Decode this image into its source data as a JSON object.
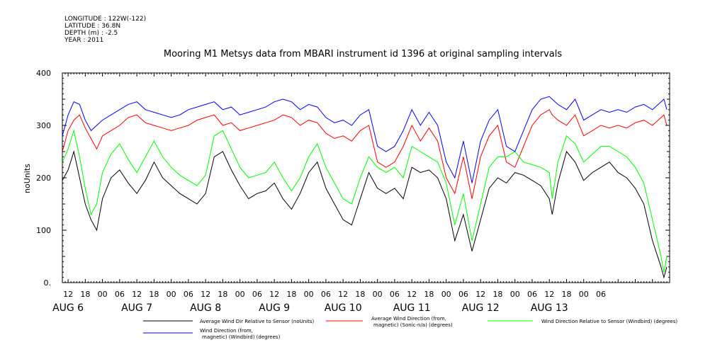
{
  "meta": {
    "longitude": "LONGITUDE : 122W(-122)",
    "latitude": "LATITUDE : 36.8N",
    "depth": "DEPTH (m) : -2.5",
    "year": "YEAR : 2011"
  },
  "chart_data": {
    "type": "line",
    "title": "Mooring M1 Metsys data from MBARI instrument id 1396 at original sampling intervals",
    "ylabel": "noUnits",
    "ylim": [
      0,
      400
    ],
    "yticks": [
      "0.",
      "100",
      "200",
      "300",
      "400"
    ],
    "xlim": [
      10,
      222
    ],
    "x_unit": "hours since Aug 6 00:00 (2011)",
    "hour_ticks": [
      "12",
      "18",
      "00",
      "06",
      "12",
      "18",
      "00",
      "06",
      "12",
      "18",
      "00",
      "06",
      "12",
      "18",
      "00",
      "06",
      "12",
      "18",
      "00",
      "06",
      "12",
      "18",
      "00",
      "06",
      "12",
      "18",
      "00",
      "06",
      "12",
      "18",
      "00",
      "06"
    ],
    "day_labels": [
      "AUG  6",
      "AUG  7",
      "AUG  8",
      "AUG  9",
      "AUG 10",
      "AUG 11",
      "AUG 12",
      "AUG 13"
    ],
    "series": [
      {
        "name": "Average Wind Dir Relative to Sensor (noUnits)",
        "color": "#000000",
        "x": [
          10,
          12,
          14,
          16,
          18,
          20,
          22,
          24,
          27,
          30,
          33,
          36,
          39,
          42,
          45,
          48,
          51,
          54,
          57,
          60,
          63,
          66,
          69,
          72,
          75,
          78,
          81,
          84,
          87,
          90,
          93,
          96,
          99,
          102,
          105,
          108,
          111,
          114,
          117,
          120,
          123,
          126,
          129,
          132,
          135,
          138,
          141,
          144,
          147,
          150,
          153,
          156,
          159,
          162,
          165,
          168,
          171,
          174,
          177,
          180,
          181,
          183,
          186,
          189,
          192,
          195,
          198,
          201,
          204,
          207,
          210,
          213,
          216,
          219,
          220,
          221
        ],
        "values": [
          195,
          215,
          250,
          200,
          150,
          120,
          100,
          160,
          200,
          215,
          190,
          170,
          195,
          230,
          200,
          185,
          170,
          160,
          150,
          170,
          240,
          250,
          215,
          185,
          160,
          170,
          175,
          190,
          160,
          140,
          170,
          210,
          230,
          180,
          150,
          120,
          110,
          160,
          210,
          180,
          170,
          180,
          160,
          220,
          210,
          215,
          200,
          160,
          80,
          130,
          60,
          120,
          180,
          200,
          190,
          210,
          205,
          195,
          185,
          160,
          130,
          190,
          250,
          230,
          195,
          210,
          220,
          230,
          210,
          200,
          180,
          150,
          80,
          30,
          10,
          30
        ]
      },
      {
        "name": "Average Wind Direction (from, magnetic) (Sonic-n/a) (degrees)",
        "color": "#ff0000",
        "x": [
          10,
          12,
          14,
          16,
          18,
          20,
          22,
          24,
          27,
          30,
          33,
          36,
          39,
          42,
          45,
          48,
          51,
          54,
          57,
          60,
          63,
          66,
          69,
          72,
          75,
          78,
          81,
          84,
          87,
          90,
          93,
          96,
          99,
          102,
          105,
          108,
          111,
          114,
          117,
          120,
          123,
          126,
          129,
          132,
          135,
          138,
          141,
          144,
          147,
          150,
          153,
          156,
          159,
          162,
          165,
          168,
          171,
          174,
          177,
          180,
          181,
          183,
          186,
          189,
          192,
          195,
          198,
          201,
          204,
          207,
          210,
          213,
          216,
          219,
          220,
          221
        ],
        "values": [
          250,
          290,
          310,
          320,
          295,
          275,
          255,
          280,
          290,
          300,
          315,
          320,
          305,
          300,
          295,
          290,
          295,
          300,
          310,
          315,
          320,
          300,
          305,
          290,
          295,
          300,
          305,
          310,
          320,
          315,
          300,
          310,
          305,
          285,
          275,
          280,
          270,
          290,
          300,
          230,
          220,
          230,
          260,
          300,
          270,
          295,
          270,
          200,
          170,
          240,
          160,
          240,
          280,
          300,
          230,
          220,
          260,
          300,
          320,
          330,
          320,
          310,
          300,
          320,
          280,
          290,
          300,
          295,
          300,
          295,
          305,
          310,
          300,
          315,
          320,
          300
        ]
      },
      {
        "name": "Wind Direction Relative to Sensor (Windbird) (degrees)",
        "color": "#00ff00",
        "x": [
          10,
          12,
          14,
          16,
          18,
          20,
          22,
          24,
          27,
          30,
          33,
          36,
          39,
          42,
          45,
          48,
          51,
          54,
          57,
          60,
          63,
          66,
          69,
          72,
          75,
          78,
          81,
          84,
          87,
          90,
          93,
          96,
          99,
          102,
          105,
          108,
          111,
          114,
          117,
          120,
          123,
          126,
          129,
          132,
          135,
          138,
          141,
          144,
          147,
          150,
          153,
          156,
          159,
          162,
          165,
          168,
          171,
          174,
          177,
          180,
          181,
          183,
          186,
          189,
          192,
          195,
          198,
          201,
          204,
          207,
          210,
          213,
          216,
          219,
          220,
          221
        ],
        "values": [
          230,
          255,
          290,
          240,
          180,
          130,
          150,
          210,
          245,
          265,
          235,
          210,
          240,
          270,
          240,
          220,
          205,
          195,
          185,
          205,
          280,
          290,
          255,
          220,
          200,
          205,
          210,
          230,
          200,
          175,
          200,
          240,
          265,
          220,
          190,
          160,
          150,
          200,
          240,
          220,
          210,
          220,
          200,
          260,
          250,
          240,
          230,
          190,
          110,
          170,
          80,
          150,
          220,
          240,
          240,
          250,
          230,
          225,
          220,
          210,
          160,
          230,
          280,
          265,
          230,
          245,
          260,
          260,
          250,
          240,
          220,
          190,
          120,
          50,
          20,
          50
        ]
      },
      {
        "name": "Wind Direction (from, magnetic) (Windbird) (degrees)",
        "color": "#0000ff",
        "x": [
          10,
          12,
          14,
          16,
          18,
          20,
          22,
          24,
          27,
          30,
          33,
          36,
          39,
          42,
          45,
          48,
          51,
          54,
          57,
          60,
          63,
          66,
          69,
          72,
          75,
          78,
          81,
          84,
          87,
          90,
          93,
          96,
          99,
          102,
          105,
          108,
          111,
          114,
          117,
          120,
          123,
          126,
          129,
          132,
          135,
          138,
          141,
          144,
          147,
          150,
          153,
          156,
          159,
          162,
          165,
          168,
          171,
          174,
          177,
          180,
          181,
          183,
          186,
          189,
          192,
          195,
          198,
          201,
          204,
          207,
          210,
          213,
          216,
          219,
          220,
          221
        ],
        "values": [
          280,
          320,
          345,
          340,
          310,
          290,
          300,
          310,
          320,
          330,
          340,
          345,
          330,
          325,
          320,
          315,
          320,
          330,
          335,
          340,
          345,
          330,
          335,
          320,
          325,
          330,
          335,
          345,
          350,
          345,
          330,
          340,
          335,
          315,
          305,
          310,
          300,
          320,
          330,
          260,
          250,
          260,
          290,
          330,
          300,
          325,
          300,
          230,
          200,
          270,
          190,
          270,
          310,
          330,
          260,
          250,
          290,
          330,
          350,
          355,
          350,
          340,
          330,
          350,
          310,
          320,
          330,
          325,
          330,
          325,
          335,
          340,
          330,
          345,
          350,
          330
        ]
      }
    ],
    "legend": [
      {
        "text": "Average Wind Dir Relative to Sensor (noUnits)",
        "color": "#000000"
      },
      {
        "text": "Average Wind Direction (from,",
        "text2": "magnetic) (Sonic-n/a) (degrees)",
        "color": "#ff0000"
      },
      {
        "text": "Wind Direction Relative to Sensor (Windbird) (degrees)",
        "color": "#00ff00"
      },
      {
        "text": "Wind Direction (from,",
        "text2": "magnetic) (Windbird) (degrees)",
        "color": "#0000ff"
      }
    ]
  }
}
